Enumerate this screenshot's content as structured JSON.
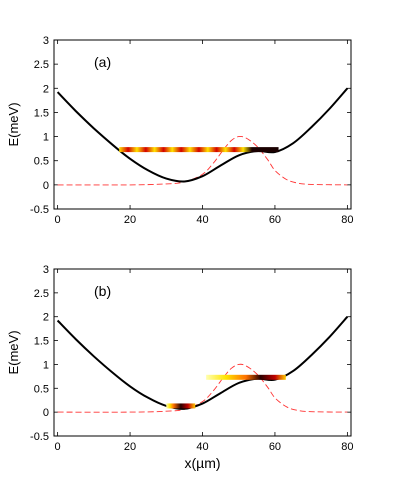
{
  "chart_data": [
    {
      "type": "line",
      "panel_label": "(a)",
      "xlabel": "",
      "ylabel": "E(meV)",
      "xlim": [
        -1,
        81
      ],
      "ylim": [
        -0.5,
        3
      ],
      "xticks": [
        0,
        20,
        40,
        60,
        80
      ],
      "yticks": [
        -0.5,
        0,
        0.5,
        1,
        1.5,
        2,
        2.5,
        3
      ],
      "ytick_labels": [
        "-0.5",
        "0",
        "0.5",
        "1",
        "1.5",
        "2",
        "2.5",
        "3"
      ],
      "grid": false,
      "series": [
        {
          "role": "potential",
          "style": "solid",
          "color": "#000000",
          "x": [
            0,
            5,
            10,
            15,
            20,
            25,
            30,
            35,
            40,
            45,
            50,
            55,
            60,
            65,
            70,
            75,
            80
          ],
          "y": [
            1.92,
            1.53,
            1.17,
            0.84,
            0.54,
            0.3,
            0.13,
            0.07,
            0.18,
            0.4,
            0.61,
            0.7,
            0.68,
            0.86,
            1.19,
            1.57,
            2.0
          ]
        },
        {
          "role": "density",
          "style": "dashed",
          "color": "#ff3333",
          "x": [
            0,
            20,
            30,
            35,
            40,
            43,
            46,
            48,
            50,
            52,
            55,
            58,
            60,
            63,
            66,
            70,
            80
          ],
          "y": [
            0,
            0,
            0.02,
            0.06,
            0.22,
            0.45,
            0.75,
            0.92,
            1.0,
            0.97,
            0.8,
            0.52,
            0.3,
            0.12,
            0.04,
            0.01,
            0
          ]
        },
        {
          "role": "energy-level",
          "style": "heat",
          "level": 0.73,
          "x_range": [
            17,
            61
          ],
          "pattern": "striped",
          "hot_range": [
            52,
            61
          ]
        }
      ]
    },
    {
      "type": "line",
      "panel_label": "(b)",
      "xlabel": "x(µm)",
      "ylabel": "E(meV)",
      "xlim": [
        -1,
        81
      ],
      "ylim": [
        -0.5,
        3
      ],
      "xticks": [
        0,
        20,
        40,
        60,
        80
      ],
      "yticks": [
        -0.5,
        0,
        0.5,
        1,
        1.5,
        2,
        2.5,
        3
      ],
      "ytick_labels": [
        "-0.5",
        "0",
        "0.5",
        "1",
        "1.5",
        "2",
        "2.5",
        "3"
      ],
      "grid": false,
      "series": [
        {
          "role": "potential",
          "style": "solid",
          "color": "#000000",
          "x": [
            0,
            5,
            10,
            15,
            20,
            25,
            30,
            35,
            40,
            45,
            50,
            55,
            60,
            65,
            70,
            75,
            80
          ],
          "y": [
            1.92,
            1.53,
            1.17,
            0.84,
            0.54,
            0.3,
            0.13,
            0.07,
            0.18,
            0.4,
            0.61,
            0.7,
            0.68,
            0.86,
            1.19,
            1.57,
            2.0
          ]
        },
        {
          "role": "density",
          "style": "dashed",
          "color": "#ff3333",
          "x": [
            0,
            20,
            30,
            35,
            40,
            43,
            46,
            48,
            50,
            52,
            55,
            58,
            60,
            63,
            66,
            70,
            80
          ],
          "y": [
            0,
            0,
            0.02,
            0.06,
            0.22,
            0.45,
            0.75,
            0.92,
            1.0,
            0.97,
            0.8,
            0.52,
            0.3,
            0.12,
            0.04,
            0.01,
            0
          ]
        },
        {
          "role": "energy-level",
          "style": "heat",
          "level": 0.73,
          "x_range": [
            41,
            63
          ],
          "pattern": "gradient",
          "hot_range": [
            52,
            60
          ]
        },
        {
          "role": "energy-level",
          "style": "heat",
          "level": 0.13,
          "x_range": [
            30,
            38
          ],
          "pattern": "gradient",
          "hot_range": [
            32,
            36
          ]
        }
      ]
    }
  ]
}
